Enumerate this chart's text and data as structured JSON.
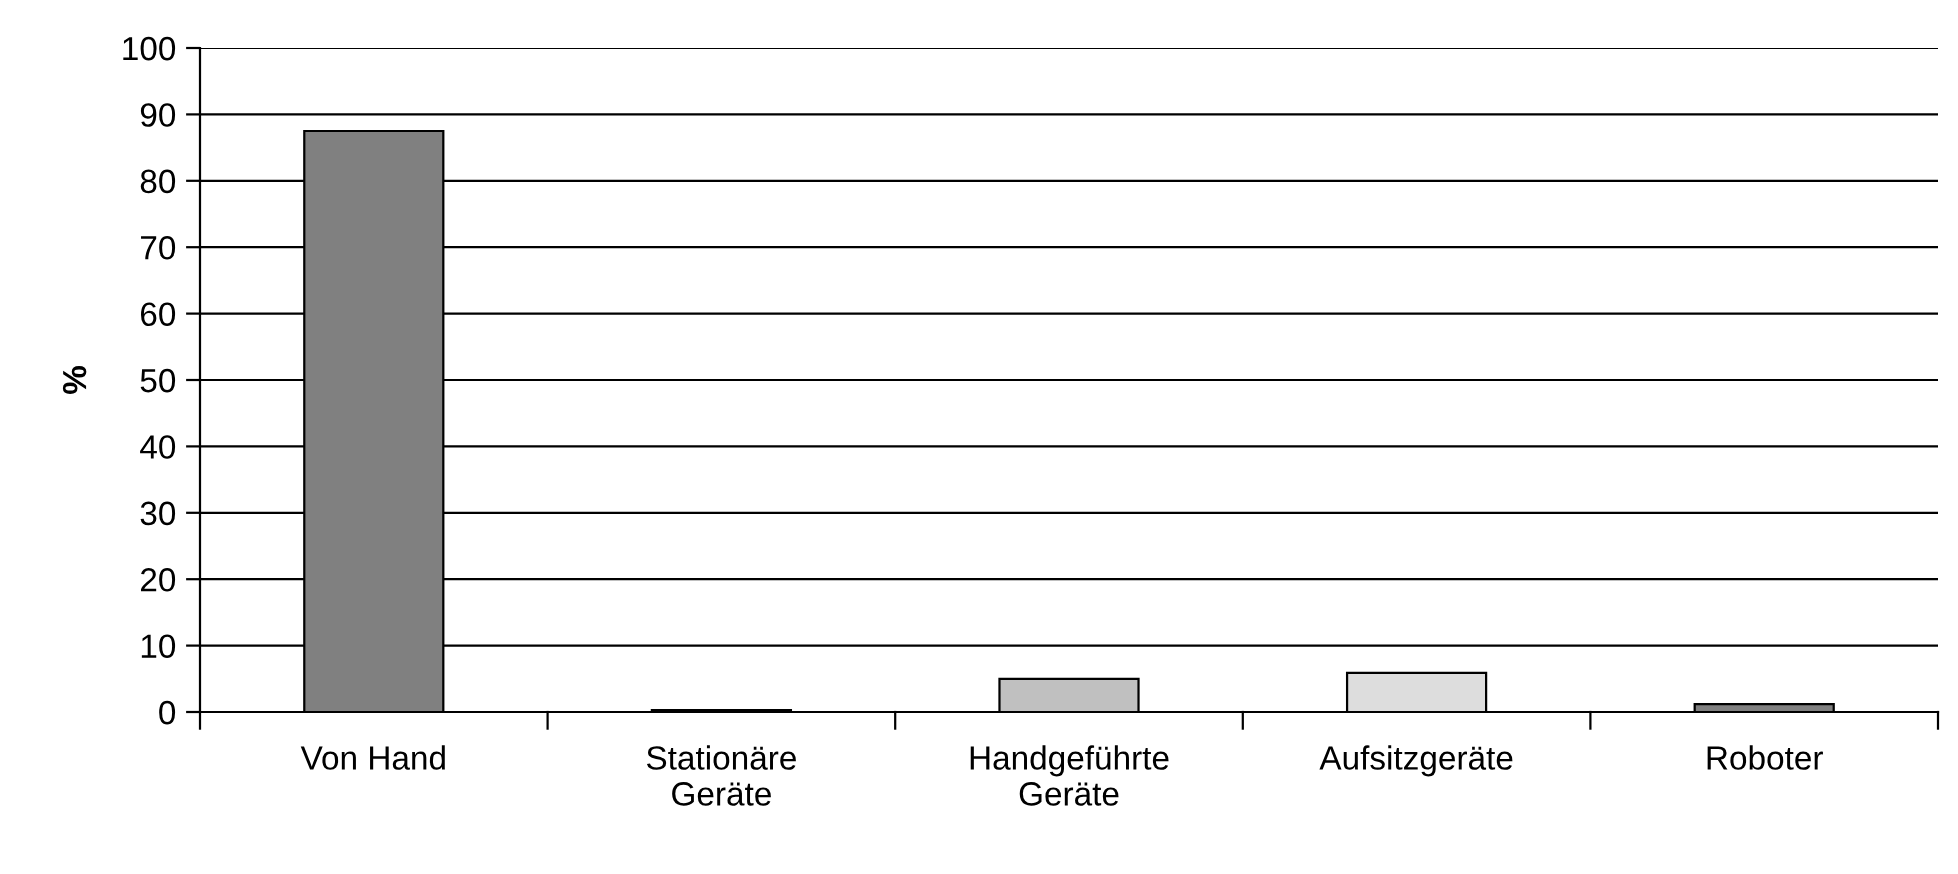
{
  "chart_data": {
    "type": "bar",
    "ylabel": "%",
    "categories": [
      "Von Hand",
      "Stationäre\nGeräte",
      "Handgeführte\nGeräte",
      "Aufsitzgeräte",
      "Roboter"
    ],
    "values": [
      87.5,
      0.3,
      5.0,
      5.9,
      1.2
    ],
    "colors": [
      "#808080",
      "#333333",
      "#c0c0c0",
      "#dddddd",
      "#808080"
    ],
    "ylim": [
      0,
      100
    ],
    "yticks": [
      0,
      10,
      20,
      30,
      40,
      50,
      60,
      70,
      80,
      90,
      100
    ],
    "grid": "y"
  }
}
